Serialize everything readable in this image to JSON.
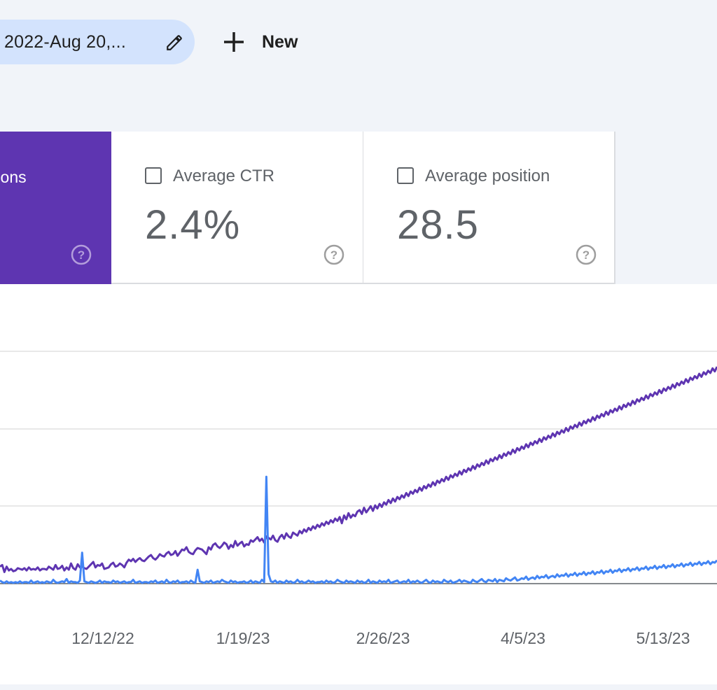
{
  "toolbar": {
    "date_chip_label": "2022-Aug 20,...",
    "edit_icon": "pencil-icon",
    "new_icon": "plus-icon",
    "new_label": "New"
  },
  "metrics": {
    "impressions": {
      "label": "Total impressions",
      "visible_label": "ressions",
      "selected": true,
      "color": "#5e35b1"
    },
    "ctr": {
      "label": "Average CTR",
      "value": "2.4%",
      "checked": false
    },
    "position": {
      "label": "Average position",
      "value": "28.5",
      "checked": false
    }
  },
  "colors": {
    "impressions": "#5e35b1",
    "clicks": "#4285f4",
    "grid": "#e0e0e0",
    "axis": "#5f6368"
  },
  "chart_data": {
    "type": "line",
    "x_tick_labels": [
      "12/12/22",
      "1/19/23",
      "2/26/23",
      "4/5/23",
      "5/13/23"
    ],
    "grid": true,
    "series": [
      {
        "values": [
          22,
          24,
          15,
          22,
          17,
          19,
          16,
          17,
          20,
          19,
          18,
          20,
          17,
          21,
          18,
          19,
          18,
          21,
          17,
          19,
          19,
          18,
          22,
          20,
          18,
          24,
          19,
          20,
          23,
          17,
          21,
          18,
          26,
          20,
          18,
          25,
          21,
          22,
          20,
          19,
          22,
          25,
          28,
          21,
          24,
          23,
          26,
          19,
          20,
          21,
          25,
          27,
          22,
          23,
          26,
          24,
          21,
          27,
          31,
          29,
          32,
          28,
          31,
          33,
          30,
          29,
          32,
          35,
          37,
          33,
          31,
          34,
          38,
          36,
          35,
          39,
          41,
          37,
          38,
          42,
          36,
          40,
          44,
          43,
          47,
          41,
          39,
          38,
          43,
          46,
          45,
          44,
          41,
          38,
          47,
          44,
          50,
          52,
          48,
          46,
          49,
          53,
          51,
          45,
          50,
          47,
          55,
          49,
          52,
          54,
          48,
          51,
          50,
          56,
          54,
          57,
          60,
          55,
          58,
          53,
          61,
          59,
          57,
          62,
          56,
          54,
          60,
          63,
          58,
          65,
          61,
          59,
          66,
          64,
          62,
          68,
          65,
          70,
          67,
          72,
          69,
          74,
          71,
          76,
          73,
          78,
          75,
          80,
          77,
          82,
          79,
          84,
          81,
          86,
          78,
          88,
          83,
          91,
          85,
          89,
          87,
          93,
          95,
          90,
          98,
          92,
          96,
          100,
          94,
          101,
          97,
          103,
          99,
          105,
          102,
          108,
          104,
          110,
          106,
          112,
          109,
          114,
          111,
          117,
          113,
          119,
          116,
          121,
          118,
          124,
          120,
          126,
          123,
          128,
          125,
          131,
          127,
          133,
          130,
          135,
          132,
          138,
          134,
          140,
          137,
          142,
          139,
          145,
          141,
          147,
          144,
          149,
          146,
          152,
          148,
          154,
          151,
          156,
          153,
          159,
          155,
          161,
          158,
          163,
          160,
          166,
          162,
          168,
          165,
          170,
          167,
          173,
          169,
          175,
          172,
          177,
          174,
          180,
          176,
          182,
          179,
          184,
          181,
          187,
          183,
          189,
          186,
          191,
          188,
          194,
          190,
          196,
          193,
          198,
          195,
          201,
          197,
          203,
          200,
          205,
          202,
          208,
          204,
          210,
          207,
          212,
          209,
          215,
          211,
          217,
          214,
          219,
          216,
          222,
          218,
          224,
          221,
          226,
          223,
          229,
          225,
          231,
          228,
          233,
          230,
          236,
          232,
          238,
          235,
          240,
          237,
          243,
          239,
          245,
          242,
          247,
          244,
          250,
          246,
          252,
          249,
          254,
          251,
          257,
          253,
          259,
          256,
          261,
          258,
          264,
          260,
          266,
          263,
          268,
          265,
          271,
          267,
          273,
          270,
          275,
          272,
          278,
          274,
          280
        ]
      },
      {
        "values": [
          4,
          2,
          1,
          3,
          1,
          2,
          1,
          2,
          1,
          3,
          1,
          2,
          2,
          1,
          4,
          1,
          2,
          3,
          1,
          2,
          1,
          3,
          2,
          1,
          5,
          2,
          1,
          2,
          3,
          2,
          6,
          1,
          3,
          2,
          2,
          1,
          4,
          40,
          3,
          2,
          1,
          3,
          2,
          1,
          2,
          4,
          1,
          3,
          2,
          2,
          1,
          4,
          2,
          3,
          1,
          2,
          3,
          1,
          2,
          2,
          5,
          1,
          2,
          3,
          1,
          2,
          2,
          1,
          3,
          2,
          4,
          1,
          2,
          3,
          1,
          5,
          2,
          1,
          3,
          2,
          4,
          1,
          2,
          2,
          3,
          1,
          4,
          2,
          1,
          18,
          3,
          2,
          1,
          3,
          2,
          4,
          1,
          2,
          3,
          2,
          5,
          3,
          2,
          1,
          4,
          2,
          3,
          1,
          2,
          2,
          3,
          1,
          2,
          4,
          1,
          3,
          2,
          1,
          5,
          2,
          138,
          12,
          3,
          2,
          4,
          1,
          3,
          2,
          1,
          4,
          2,
          3,
          1,
          2,
          5,
          2,
          3,
          1,
          2,
          4,
          2,
          3,
          1,
          2,
          2,
          3,
          1,
          4,
          2,
          3,
          1,
          2,
          5,
          3,
          2,
          1,
          4,
          2,
          3,
          2,
          1,
          4,
          2,
          3,
          1,
          2,
          5,
          1,
          3,
          2,
          1,
          4,
          2,
          3,
          2,
          5,
          1,
          2,
          3,
          4,
          1,
          2,
          3,
          2,
          5,
          1,
          3,
          2,
          4,
          2,
          1,
          3,
          5,
          2,
          1,
          4,
          2,
          3,
          2,
          1,
          5,
          3,
          2,
          4,
          1,
          2,
          3,
          5,
          2,
          4,
          3,
          2,
          1,
          5,
          3,
          2,
          4,
          6,
          3,
          2,
          5,
          4,
          3,
          6,
          2,
          5,
          4,
          3,
          7,
          5,
          4,
          6,
          8,
          4,
          5,
          7,
          6,
          9,
          5,
          7,
          8,
          6,
          10,
          7,
          9,
          8,
          11,
          7,
          9,
          10,
          8,
          12,
          9,
          11,
          10,
          13,
          9,
          12,
          11,
          14,
          10,
          13,
          12,
          15,
          11,
          14,
          13,
          16,
          12,
          15,
          14,
          17,
          13,
          16,
          15,
          18,
          14,
          17,
          16,
          19,
          15,
          18,
          17,
          20,
          16,
          19,
          18,
          21,
          17,
          20,
          19,
          22,
          18,
          21,
          20,
          23,
          19,
          22,
          21,
          24,
          20,
          23,
          22,
          25,
          21,
          24,
          23,
          26,
          22,
          25,
          24,
          27,
          23,
          26,
          25,
          28,
          24,
          27,
          26,
          29,
          25,
          28,
          27,
          30
        ]
      }
    ]
  }
}
